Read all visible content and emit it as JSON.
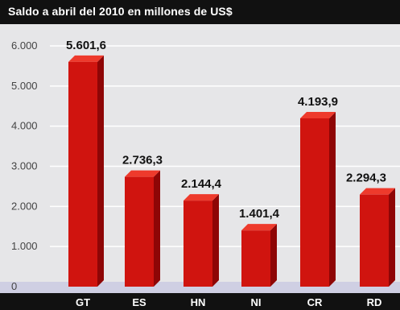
{
  "title": "Saldo a abril del 2010 en millones de US$",
  "colors": {
    "bar_front": "#d0140f",
    "bar_side": "#8e0606",
    "bar_top": "#ee3a2c",
    "gridline": "#ffffff",
    "floor": "#cfcfe3"
  },
  "chart_data": {
    "type": "bar",
    "title": "Saldo a abril del 2010 en millones de US$",
    "categories": [
      "GT",
      "ES",
      "HN",
      "NI",
      "CR",
      "RD"
    ],
    "values": [
      5601.6,
      2736.3,
      2144.4,
      1401.4,
      4193.9,
      2294.3
    ],
    "data_labels": [
      "5.601,6",
      "2.736,3",
      "2.144,4",
      "1.401,4",
      "4.193,9",
      "2.294,3"
    ],
    "ylim": [
      0,
      6000
    ],
    "yticks": [
      0,
      1000,
      2000,
      3000,
      4000,
      5000,
      6000
    ],
    "ytick_labels": [
      "0",
      "1.000",
      "2.000",
      "3.000",
      "4.000",
      "5.000",
      "6.000"
    ],
    "grid": true,
    "legend": "none"
  }
}
